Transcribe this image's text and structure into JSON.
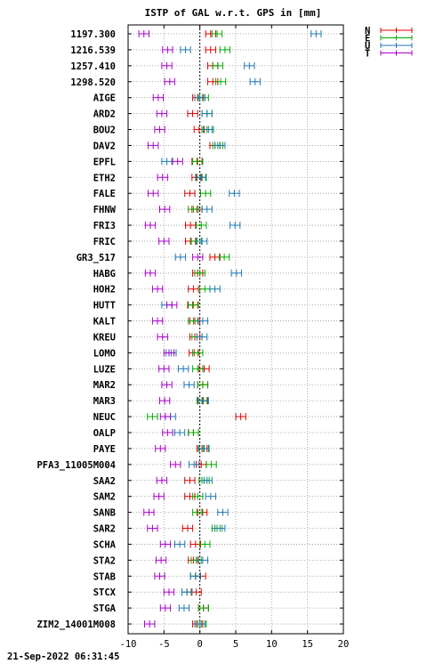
{
  "footer": {
    "timestamp": "21-Sep-2022 06:31:45"
  },
  "chart_data": {
    "type": "scatter",
    "title": "ISTP of GAL w.r.t. GPS in [mm]",
    "xlim": [
      -10,
      20
    ],
    "xticks": [
      -10,
      -5,
      0,
      5,
      10,
      15,
      20
    ],
    "grid": true,
    "zero_line": true,
    "legend_position": "top-right",
    "error_half_width": 0.7,
    "stations": [
      "1197.300",
      "1216.539",
      "1257.410",
      "1298.520",
      "AIGE",
      "ARD2",
      "BOU2",
      "DAV2",
      "EPFL",
      "ETH2",
      "FALE",
      "FHNW",
      "FRI3",
      "FRIC",
      "GR3_517",
      "HABG",
      "HOH2",
      "HUTT",
      "KALT",
      "KREU",
      "LOMO",
      "LUZE",
      "MAR2",
      "MAR3",
      "NEUC",
      "OALP",
      "PAYE",
      "PFA3_11005M004",
      "SAA2",
      "SAM2",
      "SANB",
      "SAR2",
      "SCHA",
      "STA2",
      "STAB",
      "STCX",
      "STGA",
      "ZIM2_14001M008"
    ],
    "series": [
      {
        "name": "N",
        "color": "#dd0000",
        "values": [
          1.5,
          1.5,
          1.8,
          1.8,
          -0.3,
          -1.0,
          -0.1,
          2.1,
          -0.4,
          -0.4,
          -1.4,
          -0.4,
          -1.3,
          -1.3,
          2.1,
          -0.3,
          -0.9,
          -1.0,
          -0.7,
          -0.7,
          -0.8,
          0.6,
          0.4,
          0.4,
          5.7,
          -0.9,
          0.3,
          0.2,
          -1.4,
          -1.4,
          0.3,
          -1.7,
          -0.6,
          -0.9,
          0.1,
          -0.5,
          0.5,
          -0.3
        ]
      },
      {
        "name": "E",
        "color": "#00aa00",
        "values": [
          2.4,
          3.5,
          2.5,
          2.9,
          0.5,
          1.0,
          1.0,
          2.5,
          -0.3,
          0.2,
          0.8,
          -0.9,
          0.2,
          -0.5,
          3.4,
          0.0,
          0.7,
          -0.9,
          -0.9,
          -0.4,
          -0.3,
          -0.3,
          0.4,
          0.3,
          -6.6,
          -0.9,
          0.5,
          1.6,
          0.6,
          -0.3,
          -0.3,
          2.4,
          0.7,
          -0.5,
          -0.6,
          -1.8,
          0.5,
          0.2
        ]
      },
      {
        "name": "U",
        "color": "#1f77b4",
        "values": [
          16.2,
          -2.0,
          6.9,
          7.7,
          0.0,
          1.0,
          1.2,
          2.8,
          -4.6,
          0.1,
          4.8,
          1.0,
          4.9,
          0.3,
          -2.7,
          5.1,
          2.1,
          -4.6,
          0.4,
          0.3,
          -4.0,
          -2.3,
          -1.5,
          0.5,
          -4.1,
          -2.8,
          0.6,
          -0.8,
          1.0,
          1.5,
          3.2,
          2.8,
          -2.8,
          0.4,
          -0.6,
          -1.8,
          -2.2,
          0.0
        ]
      },
      {
        "name": "T",
        "color": "#aa00cc",
        "values": [
          -7.8,
          -4.5,
          -4.6,
          -4.2,
          -5.8,
          -5.3,
          -5.6,
          -6.5,
          -3.1,
          -5.2,
          -6.5,
          -4.9,
          -6.9,
          -5.0,
          -0.3,
          -6.9,
          -5.9,
          -3.9,
          -5.9,
          -5.2,
          -4.3,
          -5.0,
          -4.6,
          -4.9,
          -4.8,
          -4.5,
          -5.5,
          -3.4,
          -5.3,
          -5.7,
          -7.1,
          -6.6,
          -4.8,
          -5.4,
          -5.6,
          -4.3,
          -4.8,
          -7.0
        ]
      }
    ]
  }
}
